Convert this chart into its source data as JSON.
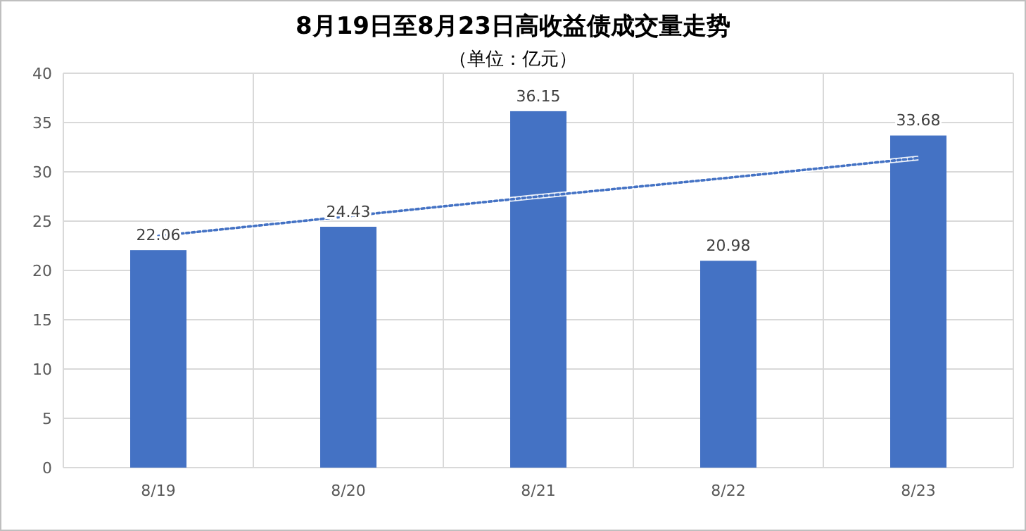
{
  "chart_data": {
    "type": "bar",
    "title": "8月19日至8月23日高收益债成交量走势",
    "subtitle": "（单位：亿元）",
    "categories": [
      "8/19",
      "8/20",
      "8/21",
      "8/22",
      "8/23"
    ],
    "series": [
      {
        "color": "#4472c4",
        "values": [
          22.06,
          24.43,
          36.15,
          20.98,
          33.68
        ]
      },
      {
        "type": "line",
        "color": "#4472c4",
        "line_style": "dotted",
        "values": [
          23.5,
          25.5,
          27.5,
          29.4,
          31.4
        ]
      }
    ],
    "value_labels": [
      "22.06",
      "24.43",
      "36.15",
      "20.98",
      "33.68"
    ],
    "ylim": [
      0,
      40
    ],
    "yticks": [
      0,
      5,
      10,
      15,
      20,
      25,
      30,
      35,
      40
    ],
    "grid": true
  }
}
